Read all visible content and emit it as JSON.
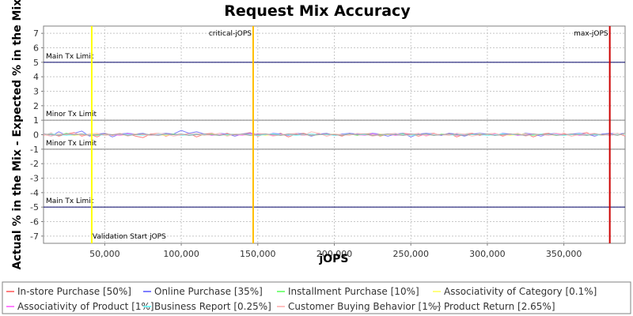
{
  "chart_data": {
    "type": "line",
    "title": "Request Mix Accuracy",
    "xlabel": "jOPS",
    "ylabel": "Actual % in the Mix - Expected % in the Mix",
    "xlim": [
      10000,
      390000
    ],
    "ylim": [
      -7.5,
      7.5
    ],
    "x_ticks": [
      50000,
      100000,
      150000,
      200000,
      250000,
      300000,
      350000
    ],
    "x_tick_labels": [
      "50,000",
      "100,000",
      "150,000",
      "200,000",
      "250,000",
      "300,000",
      "350,000"
    ],
    "y_ticks": [
      7,
      6,
      5,
      4,
      3,
      2,
      1,
      0,
      -1,
      -2,
      -3,
      -4,
      -5,
      -6,
      -7
    ],
    "y_tick_labels": [
      "7",
      "6",
      "5",
      "4",
      "3",
      "2",
      "1",
      "0",
      "-1",
      "-2",
      "-3",
      "-4",
      "-5",
      "-6",
      "-7"
    ],
    "grid": true,
    "legend_position": "bottom",
    "horizontal_lines": [
      {
        "y": 5,
        "label": "Main Tx Limit",
        "label_side": "above",
        "color": "#000066"
      },
      {
        "y": 1,
        "label": "Minor Tx Limit",
        "label_side": "above",
        "color": "#808080"
      },
      {
        "y": -1,
        "label": "Minor Tx Limit",
        "label_side": "above",
        "color": "#808080"
      },
      {
        "y": -5,
        "label": "Main Tx Limit",
        "label_side": "above",
        "color": "#000066"
      }
    ],
    "vertical_lines": [
      {
        "x": 41500,
        "label": "Validation Start jOPS",
        "label_pos": "bottom",
        "color": "#ffff00"
      },
      {
        "x": 147000,
        "label": "critical-jOPS",
        "label_pos": "top",
        "color": "#ffbf00"
      },
      {
        "x": 380000,
        "label": "max-jOPS",
        "label_pos": "top",
        "color": "#cc0000"
      }
    ],
    "x": [
      10000,
      15000,
      20000,
      25000,
      30000,
      35000,
      40000,
      45000,
      50000,
      55000,
      60000,
      65000,
      70000,
      75000,
      80000,
      85000,
      90000,
      95000,
      100000,
      105000,
      110000,
      115000,
      120000,
      125000,
      130000,
      135000,
      140000,
      145000,
      150000,
      155000,
      160000,
      165000,
      170000,
      175000,
      180000,
      185000,
      190000,
      195000,
      200000,
      205000,
      210000,
      215000,
      220000,
      225000,
      230000,
      235000,
      240000,
      245000,
      250000,
      255000,
      260000,
      265000,
      270000,
      275000,
      280000,
      285000,
      290000,
      295000,
      300000,
      305000,
      310000,
      315000,
      320000,
      325000,
      330000,
      335000,
      340000,
      345000,
      350000,
      355000,
      360000,
      365000,
      370000,
      375000,
      380000,
      385000,
      390000
    ],
    "series": [
      {
        "name": "In-store Purchase [50%]",
        "color": "#ff7f7f",
        "values": [
          -0.05,
          0.1,
          -0.1,
          0.05,
          0.15,
          -0.1,
          0.05,
          -0.15,
          0.1,
          -0.05,
          0.05,
          0.1,
          -0.1,
          -0.2,
          0.05,
          0.1,
          -0.1,
          0.05,
          -0.05,
          0.1,
          -0.15,
          0.05,
          0.1,
          -0.05,
          0.1,
          -0.1,
          0.05,
          0.15,
          -0.1,
          0.05,
          -0.05,
          0.1,
          -0.15,
          0.05,
          0.1,
          -0.05,
          0.1,
          -0.1,
          0.05,
          -0.1,
          0.1,
          -0.05,
          0.05,
          0.1,
          -0.1,
          0.05,
          -0.05,
          0.1,
          0.05,
          -0.1,
          0.05,
          0.1,
          -0.05,
          0.1,
          -0.15,
          0.05,
          0.1,
          -0.05,
          0.05,
          0.1,
          -0.1,
          0.05,
          -0.05,
          0.1,
          -0.15,
          0.05,
          0.1,
          -0.05,
          0.1,
          -0.1,
          0.05,
          0.15,
          -0.1,
          0.05,
          -0.05,
          0.1,
          -0.1
        ]
      },
      {
        "name": "Online Purchase [35%]",
        "color": "#7f7fff",
        "values": [
          0.05,
          -0.1,
          0.2,
          -0.05,
          0.1,
          0.25,
          -0.1,
          0.05,
          0.1,
          -0.15,
          0.05,
          0.1,
          0.05,
          0.1,
          -0.05,
          0.05,
          0.1,
          0.05,
          0.3,
          0.1,
          0.2,
          0.05,
          -0.05,
          0.1,
          0.05,
          -0.1,
          0.05,
          0.1,
          0.05,
          -0.05,
          0.1,
          0.05,
          -0.05,
          0.1,
          0.05,
          -0.1,
          0.05,
          0.1,
          -0.05,
          0.05,
          0.1,
          0.05,
          -0.05,
          0.1,
          0.05,
          -0.1,
          0.05,
          0.1,
          -0.15,
          0.05,
          0.1,
          0.05,
          -0.05,
          0.1,
          0.05,
          -0.1,
          0.05,
          0.1,
          0.05,
          -0.05,
          0.1,
          0.05,
          -0.05,
          0.1,
          0.05,
          -0.1,
          0.05,
          0.1,
          -0.05,
          0.05,
          0.1,
          0.05,
          -0.1,
          0.05,
          0.1,
          0.05,
          0.1
        ]
      },
      {
        "name": "Installment Purchase [10%]",
        "color": "#7fff7f",
        "values": [
          0.0,
          0.05,
          -0.05,
          0.1,
          -0.05,
          0.05,
          0.0,
          -0.05,
          0.05,
          0.0,
          0.05,
          -0.05,
          0.05,
          0.0,
          -0.05,
          0.05,
          0.0,
          0.05,
          -0.05,
          0.0,
          0.05,
          -0.05,
          0.05,
          0.0,
          -0.05,
          0.05,
          0.0,
          0.05,
          -0.05,
          0.0,
          0.05,
          -0.05,
          0.05,
          0.0,
          -0.05,
          0.05,
          0.0,
          0.05,
          -0.05,
          0.0,
          0.05,
          -0.05,
          0.05,
          0.0,
          -0.05,
          0.05,
          0.0,
          0.05,
          -0.05,
          0.0,
          0.05,
          -0.05,
          0.05,
          0.0,
          -0.05,
          0.05,
          0.0,
          0.05,
          -0.05,
          0.0,
          0.05,
          -0.05,
          0.05,
          0.0,
          -0.05,
          0.05,
          0.0,
          0.05,
          -0.05,
          0.0,
          0.05,
          -0.05,
          0.05,
          0.0,
          -0.05,
          0.05,
          0.0
        ]
      },
      {
        "name": "Associativity of Category [0.1%]",
        "color": "#ffff7f",
        "values": [
          0.0,
          0.0,
          0.05,
          0.0,
          -0.05,
          0.0,
          0.0,
          0.05,
          0.0,
          0.0,
          -0.05,
          0.0,
          0.05,
          0.0,
          0.0,
          0.0,
          -0.05,
          0.0,
          0.0,
          0.05,
          0.0,
          0.0,
          0.0,
          -0.05,
          0.0,
          0.05,
          0.0,
          0.0,
          0.0,
          -0.05,
          0.0,
          0.0,
          0.05,
          0.0,
          0.0,
          -0.05,
          0.0,
          0.0,
          0.05,
          0.0,
          0.0,
          0.0,
          -0.05,
          0.0,
          0.05,
          0.0,
          0.0,
          0.0,
          -0.05,
          0.0,
          0.0,
          0.05,
          0.0,
          0.0,
          -0.05,
          0.0,
          0.0,
          0.05,
          0.0,
          0.0,
          0.0,
          -0.05,
          0.0,
          0.05,
          0.0,
          0.0,
          0.0,
          -0.05,
          0.0,
          0.0,
          0.05,
          0.0,
          0.0,
          -0.05,
          0.0,
          0.0,
          0.05
        ]
      },
      {
        "name": "Associativity of Product [1%]",
        "color": "#ff7fff",
        "values": [
          0.05,
          0.0,
          -0.05,
          0.05,
          0.0,
          0.05,
          -0.05,
          0.0,
          0.05,
          0.0,
          -0.05,
          0.05,
          0.0,
          0.05,
          -0.05,
          0.0,
          0.05,
          0.0,
          -0.05,
          0.05,
          0.0,
          0.05,
          -0.05,
          0.0,
          0.05,
          0.0,
          -0.05,
          0.05,
          0.0,
          0.05,
          -0.05,
          0.0,
          0.05,
          0.0,
          -0.05,
          0.05,
          0.0,
          0.05,
          -0.05,
          0.0,
          0.05,
          0.0,
          -0.05,
          0.05,
          0.0,
          0.05,
          -0.05,
          0.0,
          0.05,
          0.0,
          -0.05,
          0.05,
          0.0,
          0.05,
          -0.05,
          0.0,
          0.05,
          0.0,
          -0.05,
          0.05,
          0.0,
          0.05,
          -0.05,
          0.0,
          0.05,
          0.0,
          -0.05,
          0.05,
          0.0,
          0.05,
          -0.05,
          0.0,
          0.05,
          0.0,
          -0.05,
          0.05,
          0.0
        ]
      },
      {
        "name": "Business Report [0.25%]",
        "color": "#7fffff",
        "values": [
          0.0,
          0.05,
          0.0,
          -0.05,
          0.0,
          0.05,
          0.0,
          0.0,
          -0.05,
          0.0,
          0.05,
          0.0,
          0.0,
          -0.05,
          0.0,
          0.05,
          0.0,
          0.0,
          -0.05,
          0.0,
          0.05,
          0.0,
          0.0,
          -0.05,
          0.0,
          0.05,
          0.0,
          0.0,
          -0.05,
          0.0,
          0.05,
          0.0,
          0.0,
          -0.05,
          0.0,
          0.05,
          0.0,
          0.0,
          -0.05,
          0.0,
          0.05,
          0.0,
          0.0,
          -0.05,
          0.0,
          0.05,
          0.0,
          0.0,
          -0.05,
          0.0,
          0.05,
          0.0,
          0.0,
          -0.05,
          0.0,
          0.05,
          0.0,
          0.0,
          -0.05,
          0.0,
          0.05,
          0.0,
          0.0,
          -0.05,
          0.0,
          0.05,
          0.0,
          0.0,
          -0.05,
          0.0,
          0.05,
          0.0,
          0.0,
          -0.05,
          0.0,
          0.05,
          0.0
        ]
      },
      {
        "name": "Customer Buying Behavior [1%]",
        "color": "#ffbfbf",
        "values": [
          0.0,
          -0.1,
          0.05,
          0.0,
          0.1,
          -0.05,
          0.05,
          0.1,
          -0.05,
          0.0,
          0.1,
          -0.1,
          0.05,
          0.0,
          -0.05,
          0.1,
          0.05,
          -0.1,
          0.0,
          0.05,
          0.1,
          -0.05,
          0.0,
          0.1,
          -0.1,
          0.05,
          0.0,
          -0.05,
          0.1,
          0.05,
          -0.1,
          0.0,
          0.05,
          0.1,
          -0.05,
          0.2,
          0.1,
          -0.1,
          0.05,
          0.0,
          -0.05,
          0.1,
          0.05,
          -0.1,
          0.0,
          0.05,
          0.1,
          -0.05,
          0.0,
          0.1,
          -0.1,
          0.05,
          0.0,
          -0.05,
          0.1,
          0.05,
          -0.1,
          0.0,
          0.05,
          0.1,
          -0.05,
          0.0,
          0.1,
          -0.1,
          0.05,
          0.0,
          -0.05,
          0.1,
          0.05,
          -0.1,
          0.0,
          0.05,
          0.1,
          -0.05,
          0.0,
          0.1,
          -0.05
        ]
      },
      {
        "name": "Product Return [2.65%]",
        "color": "#a0a0a0",
        "values": [
          0.05,
          0.0,
          -0.05,
          0.05,
          0.0,
          0.05,
          -0.05,
          0.0,
          0.05,
          0.0,
          0.05,
          -0.05,
          0.0,
          0.05,
          0.0,
          -0.05,
          0.05,
          0.0,
          0.05,
          -0.05,
          0.0,
          0.05,
          0.0,
          -0.05,
          0.05,
          0.0,
          0.05,
          -0.05,
          0.0,
          0.05,
          0.0,
          -0.05,
          0.05,
          0.0,
          0.05,
          -0.05,
          0.0,
          0.05,
          0.0,
          -0.05,
          0.05,
          0.0,
          0.05,
          -0.05,
          0.0,
          0.05,
          0.0,
          -0.05,
          0.05,
          0.0,
          0.05,
          -0.05,
          0.0,
          0.05,
          0.0,
          -0.05,
          0.05,
          0.0,
          0.05,
          -0.05,
          0.0,
          0.05,
          0.0,
          -0.05,
          0.05,
          0.0,
          0.05,
          -0.05,
          0.0,
          0.05,
          0.0,
          -0.05,
          0.05,
          0.0,
          0.05,
          -0.05,
          0.1
        ]
      }
    ]
  }
}
